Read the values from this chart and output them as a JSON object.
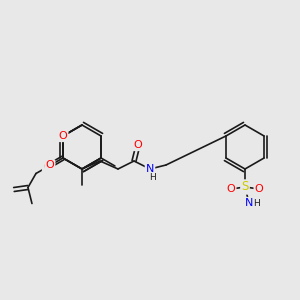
{
  "bg_color": "#e8e8e8",
  "bond_color": "#1a1a1a",
  "bond_width": 1.2,
  "atom_colors": {
    "O": "#ff0000",
    "N": "#0000ff",
    "S": "#cccc00",
    "C": "#1a1a1a",
    "H": "#1a1a1a"
  },
  "font_size": 7.5
}
